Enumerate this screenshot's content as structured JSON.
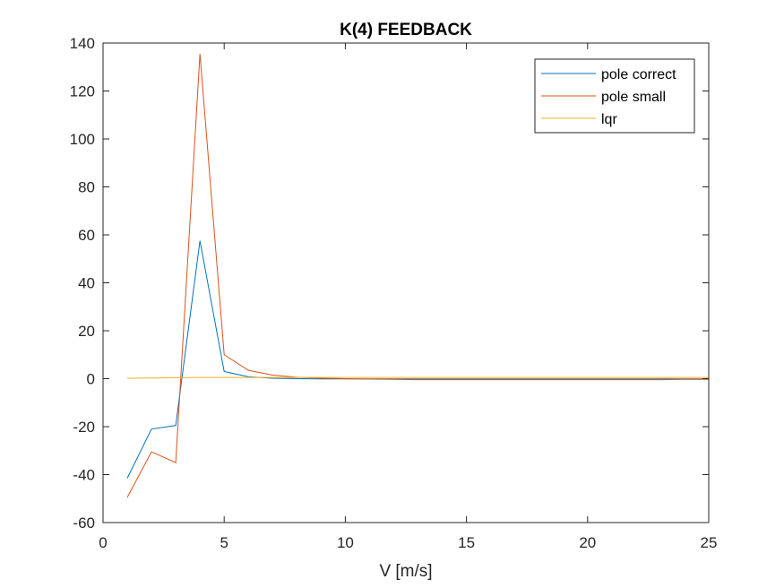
{
  "chart_data": {
    "type": "line",
    "title": "K(4) FEEDBACK",
    "xlabel": "V [m/s]",
    "ylabel": "",
    "xlim": [
      0,
      25
    ],
    "ylim": [
      -60,
      140
    ],
    "xticks": [
      0,
      5,
      10,
      15,
      20,
      25
    ],
    "yticks": [
      -60,
      -40,
      -20,
      0,
      20,
      40,
      60,
      80,
      100,
      120,
      140
    ],
    "grid": false,
    "legend_position": "top-right",
    "x": [
      1,
      2,
      3,
      4,
      5,
      6,
      7,
      8,
      9,
      10,
      11,
      12,
      13,
      14,
      15,
      16,
      17,
      18,
      19,
      20,
      21,
      22,
      23,
      24,
      25
    ],
    "series": [
      {
        "name": "pole correct",
        "color": "#0072BD",
        "values": [
          -41.5,
          -21,
          -19.5,
          57.5,
          3,
          0.8,
          0.2,
          0,
          -0.1,
          -0.1,
          -0.1,
          -0.1,
          -0.1,
          -0.1,
          -0.1,
          -0.1,
          -0.1,
          -0.1,
          -0.1,
          -0.1,
          -0.1,
          -0.1,
          -0.1,
          -0.1,
          -0.1
        ]
      },
      {
        "name": "pole small",
        "color": "#D95319",
        "values": [
          -49.5,
          -30.5,
          -35,
          135.5,
          10,
          3.5,
          1.5,
          0.6,
          0.2,
          0,
          -0.2,
          -0.3,
          -0.4,
          -0.4,
          -0.4,
          -0.4,
          -0.4,
          -0.4,
          -0.4,
          -0.4,
          -0.4,
          -0.4,
          -0.4,
          -0.3,
          -0.3
        ]
      },
      {
        "name": "lqr",
        "color": "#EDB120",
        "values": [
          0.2,
          0.3,
          0.4,
          0.5,
          0.5,
          0.5,
          0.5,
          0.5,
          0.5,
          0.5,
          0.5,
          0.5,
          0.5,
          0.5,
          0.5,
          0.5,
          0.5,
          0.5,
          0.5,
          0.5,
          0.5,
          0.5,
          0.5,
          0.5,
          0.5
        ]
      }
    ]
  }
}
